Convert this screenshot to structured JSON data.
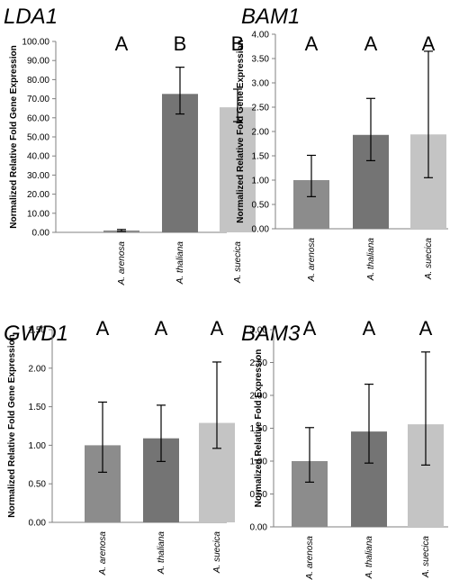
{
  "chart_data": [
    {
      "type": "bar",
      "title": "LDA1",
      "ylabel": "Normalized Relative Fold Gene Expression",
      "categories": [
        "A. arenosa",
        "A. thaliana",
        "A. suecica"
      ],
      "values": [
        1.0,
        72.5,
        65.5
      ],
      "error_low": [
        0.5,
        62.0,
        58.0
      ],
      "error_high": [
        1.5,
        86.5,
        75.0
      ],
      "significance": [
        "A",
        "B",
        "B"
      ],
      "ylim": [
        0,
        100
      ],
      "yticks": [
        "0.00",
        "10.00",
        "20.00",
        "30.00",
        "40.00",
        "50.00",
        "60.00",
        "70.00",
        "80.00",
        "90.00",
        "100.00"
      ],
      "colors": [
        "#8c8c8c",
        "#747474",
        "#c4c4c4"
      ]
    },
    {
      "type": "bar",
      "title": "BAM1",
      "ylabel": "Normalized Relative Fold Gene Expression",
      "categories": [
        "A. arenosa",
        "A. thaliana",
        "A. suecica"
      ],
      "values": [
        1.0,
        1.93,
        1.94
      ],
      "error_low": [
        0.66,
        1.4,
        1.05
      ],
      "error_high": [
        1.51,
        2.68,
        3.65
      ],
      "significance": [
        "A",
        "A",
        "A"
      ],
      "ylim": [
        0,
        4
      ],
      "yticks": [
        "0.00",
        "0.50",
        "1.00",
        "1.50",
        "2.00",
        "2.50",
        "3.00",
        "3.50",
        "4.00"
      ],
      "colors": [
        "#8c8c8c",
        "#747474",
        "#c4c4c4"
      ]
    },
    {
      "type": "bar",
      "title": "GWD1",
      "ylabel": "Normalized Relative Fold Gene Expression",
      "categories": [
        "A. arenosa",
        "A. thaliana",
        "A. suecica"
      ],
      "values": [
        1.0,
        1.09,
        1.29
      ],
      "error_low": [
        0.65,
        0.79,
        0.96
      ],
      "error_high": [
        1.56,
        1.52,
        2.08
      ],
      "significance": [
        "A",
        "A",
        "A"
      ],
      "ylim": [
        0,
        2.5
      ],
      "yticks": [
        "0.00",
        "0.50",
        "1.00",
        "1.50",
        "2.00",
        "2.50"
      ],
      "colors": [
        "#8c8c8c",
        "#747474",
        "#c4c4c4"
      ]
    },
    {
      "type": "bar",
      "title": "BAM3",
      "ylabel": "Normalized Relative Fold Expression",
      "categories": [
        "A. arenosa",
        "A. thaliana",
        "A. suecica"
      ],
      "values": [
        1.0,
        1.45,
        1.56
      ],
      "error_low": [
        0.68,
        0.97,
        0.94
      ],
      "error_high": [
        1.51,
        2.17,
        2.66
      ],
      "significance": [
        "A",
        "A",
        "A"
      ],
      "ylim": [
        0,
        3
      ],
      "yticks": [
        "0.00",
        "0.50",
        "1.00",
        "1.50",
        "2.00",
        "2.50",
        "3.00"
      ],
      "colors": [
        "#8c8c8c",
        "#747474",
        "#c4c4c4"
      ]
    }
  ]
}
